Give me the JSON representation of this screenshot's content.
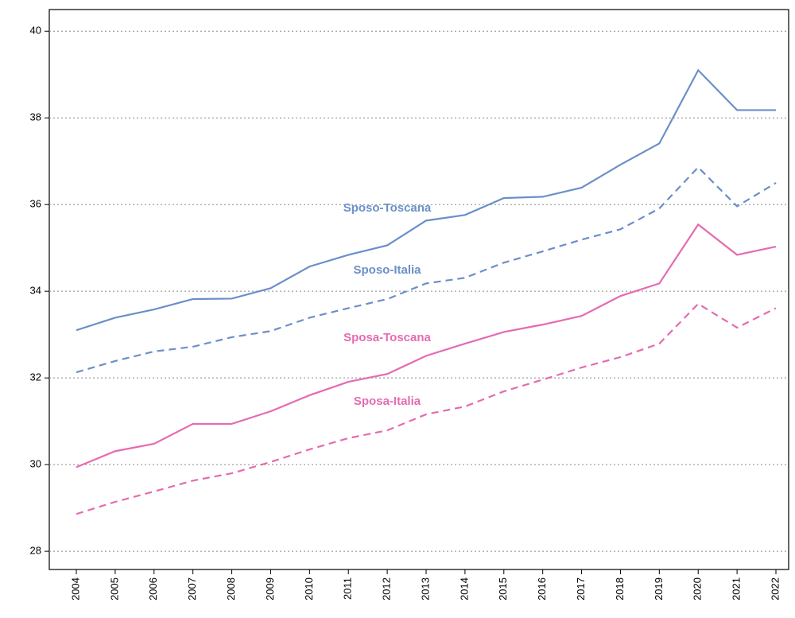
{
  "chart_data": {
    "type": "line",
    "categories": [
      "2004",
      "2005",
      "2006",
      "2007",
      "2008",
      "2009",
      "2010",
      "2011",
      "2012",
      "2013",
      "2014",
      "2015",
      "2016",
      "2017",
      "2018",
      "2019",
      "2020",
      "2021",
      "2022"
    ],
    "series": [
      {
        "name": "Sposo-Toscana",
        "color": "#6b8fc8",
        "linestyle": "solid",
        "values": [
          33.1,
          33.39,
          33.58,
          33.82,
          33.83,
          34.07,
          34.57,
          34.84,
          35.06,
          35.63,
          35.76,
          36.15,
          36.18,
          36.39,
          36.92,
          37.41,
          39.1,
          38.18,
          38.18
        ]
      },
      {
        "name": "Sposo-Italia",
        "color": "#6b8fc8",
        "linestyle": "dashed",
        "values": [
          32.13,
          32.39,
          32.61,
          32.72,
          32.94,
          33.08,
          33.39,
          33.61,
          33.82,
          34.18,
          34.31,
          34.66,
          34.92,
          35.19,
          35.43,
          35.91,
          36.86,
          35.96,
          36.5
        ]
      },
      {
        "name": "Sposa-Toscana",
        "color": "#e56bb0",
        "linestyle": "solid",
        "values": [
          29.94,
          30.31,
          30.48,
          30.94,
          30.94,
          31.23,
          31.6,
          31.91,
          32.09,
          32.51,
          32.79,
          33.06,
          33.23,
          33.43,
          33.89,
          34.18,
          35.54,
          34.84,
          35.03
        ]
      },
      {
        "name": "Sposa-Italia",
        "color": "#e56bb0",
        "linestyle": "dashed",
        "values": [
          28.86,
          29.14,
          29.38,
          29.63,
          29.8,
          30.06,
          30.35,
          30.61,
          30.79,
          31.16,
          31.34,
          31.69,
          31.96,
          32.24,
          32.48,
          32.79,
          33.71,
          33.16,
          33.61
        ]
      }
    ],
    "ylim": [
      27.58,
      40.5
    ],
    "yticks": [
      28,
      30,
      32,
      34,
      36,
      38,
      40
    ],
    "grid": true
  }
}
